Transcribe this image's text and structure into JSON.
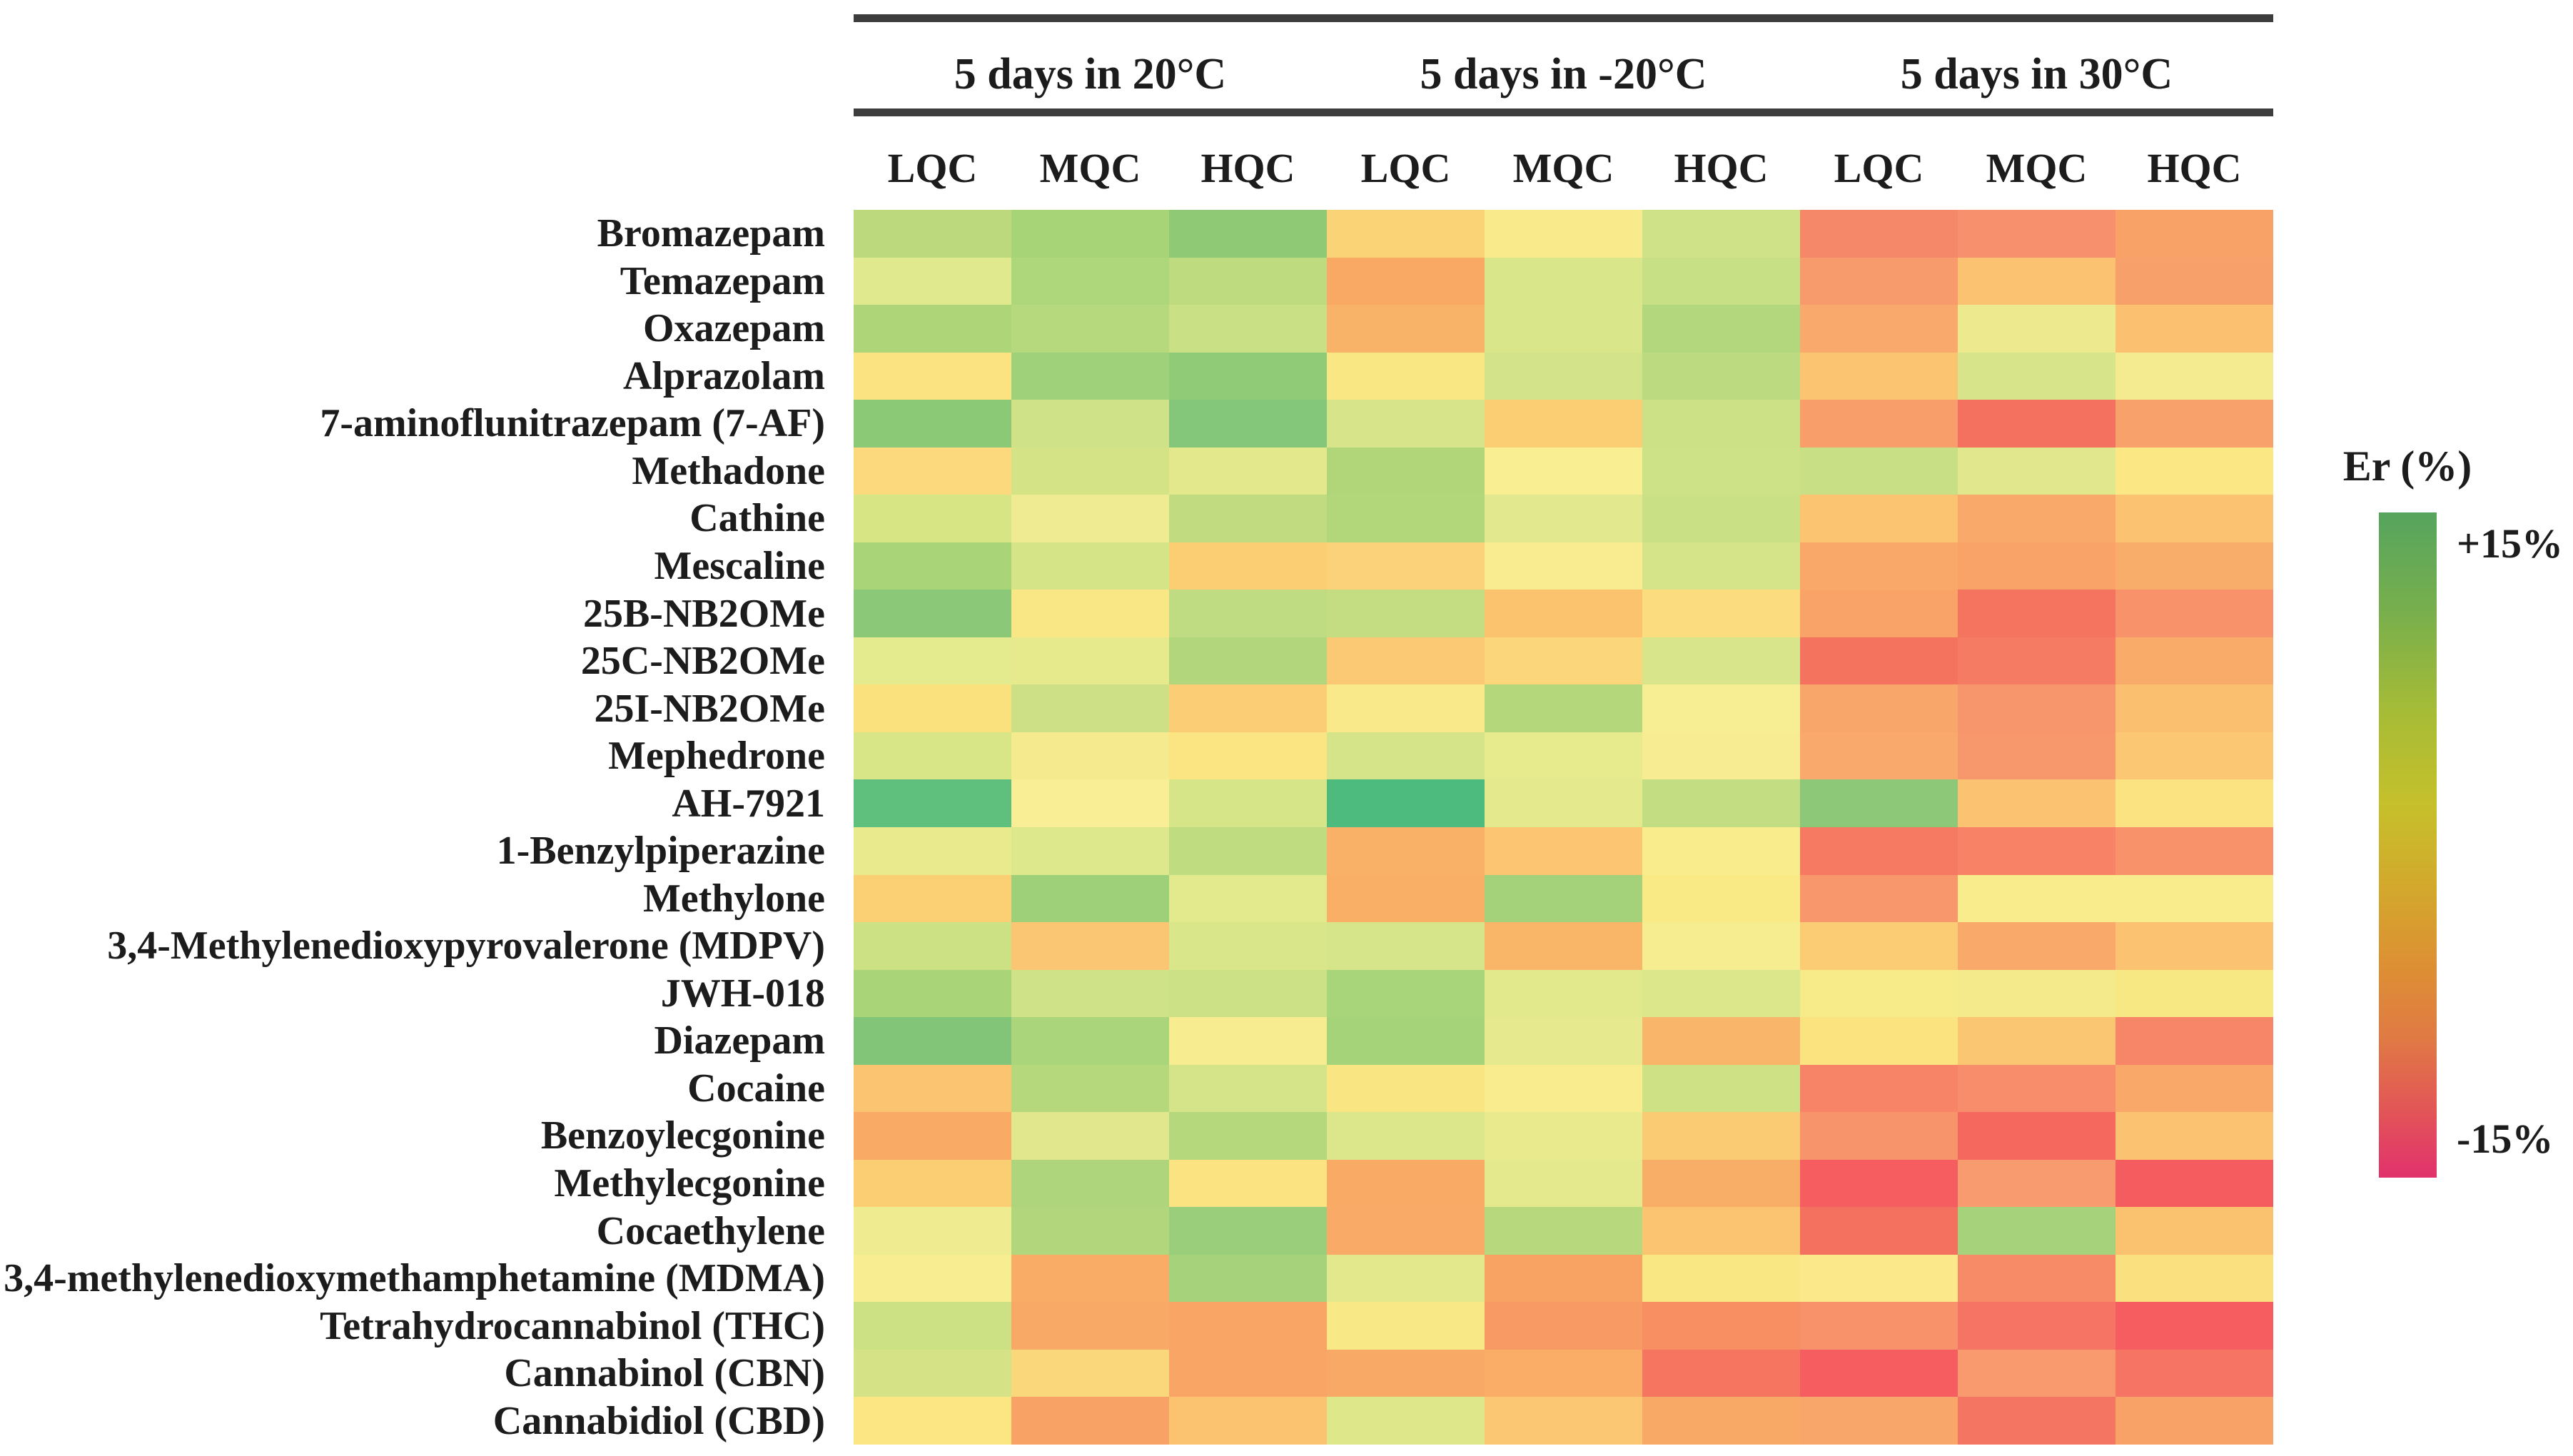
{
  "chart_data": {
    "type": "heatmap",
    "title": "",
    "col_groups": [
      "5 days in 20°C",
      "5 days in -20°C",
      "5 days in 30°C"
    ],
    "col_levels": [
      "LQC",
      "MQC",
      "HQC"
    ],
    "rows": [
      "Bromazepam",
      "Temazepam",
      "Oxazepam",
      "Alprazolam",
      "7-aminoflunitrazepam (7-AF)",
      "Methadone",
      "Cathine",
      "Mescaline",
      "25B-NB2OMe",
      "25C-NB2OMe",
      "25I-NB2OMe",
      "Mephedrone",
      "AH-7921",
      "1-Benzylpiperazine",
      "Methylone",
      "3,4-Methylenedioxypyrovalerone (MDPV)",
      "JWH-018",
      "Diazepam",
      "Cocaine",
      "Benzoylecgonine",
      "Methylecgonine",
      "Cocaethylene",
      "3,4-methylenedioxymethamphetamine (MDMA)",
      "Tetrahydrocannabinol (THC)",
      "Cannabinol (CBN)",
      "Cannabidiol (CBD)"
    ],
    "values_est_er_pct": [
      [
        5,
        7,
        8.5,
        -3.5,
        -0.5,
        3.5,
        -11,
        -10,
        -7.5
      ],
      [
        1.5,
        6.5,
        5,
        -7.5,
        3,
        4.5,
        -8.5,
        -5,
        -7.5
      ],
      [
        6.5,
        6,
        4.5,
        -6.5,
        3,
        6,
        -7,
        1,
        -5
      ],
      [
        -1.5,
        7.5,
        8.5,
        -1,
        3.5,
        5.5,
        -5,
        3,
        0
      ],
      [
        9,
        3.5,
        10,
        3,
        -4,
        3.5,
        -8,
        -12,
        -7.5
      ],
      [
        -3,
        3.5,
        1.5,
        6.5,
        0,
        3.5,
        4.5,
        2,
        -1
      ],
      [
        3,
        0.5,
        5,
        6.5,
        2,
        4.5,
        -5,
        -7,
        -5
      ],
      [
        7,
        3.5,
        -4,
        -3.5,
        0,
        3,
        -7,
        -7.5,
        -6.5
      ],
      [
        9,
        -0.5,
        5,
        4.5,
        -5,
        -2.5,
        -7.5,
        -11.5,
        -9.5
      ],
      [
        1.5,
        1.5,
        6,
        -4.5,
        -3,
        3,
        -11.5,
        -11,
        -6.5
      ],
      [
        -2,
        4,
        -4,
        -0.5,
        6,
        0,
        -7,
        -9,
        -5
      ],
      [
        3,
        0,
        -1.5,
        3,
        1.5,
        0,
        -7,
        -8.5,
        -4.5
      ],
      [
        12,
        0,
        3,
        13,
        1.5,
        5,
        9,
        -5,
        -1.5
      ],
      [
        1,
        2.5,
        5,
        -6.5,
        -4.5,
        0,
        -11,
        -10.5,
        -9.5
      ],
      [
        -3.5,
        7.5,
        1.5,
        -6.5,
        7,
        -0.5,
        -9,
        0,
        0
      ],
      [
        4,
        -4.5,
        3,
        3,
        -6,
        0,
        -4,
        -7,
        -5
      ],
      [
        7,
        3.5,
        3.5,
        7,
        2,
        2.5,
        -0.5,
        0,
        -1
      ],
      [
        10,
        6.5,
        0,
        7,
        1.5,
        -6,
        -2,
        -4.5,
        -10
      ],
      [
        -5,
        6,
        3,
        -1,
        0,
        4,
        -10.5,
        -9.5,
        -7
      ],
      [
        -7,
        2,
        6,
        2.5,
        1,
        -4,
        -9,
        -12,
        -5
      ],
      [
        -4,
        6.5,
        -1.5,
        -7,
        1.5,
        -6.5,
        -12.5,
        -8.5,
        -12.5
      ],
      [
        0.5,
        6,
        7.5,
        -7,
        6,
        -5,
        -11.5,
        7,
        -5
      ],
      [
        0,
        -7,
        7,
        2,
        -7.5,
        -1,
        -0.5,
        -9.5,
        -2.5
      ],
      [
        4,
        -7,
        -7.5,
        -1,
        -8.5,
        -10,
        -9.5,
        -11.5,
        -12.5
      ],
      [
        3.5,
        -3,
        -7.5,
        -7,
        -6.5,
        -11.5,
        -12.5,
        -8.5,
        -11
      ],
      [
        -1,
        -7.5,
        -5,
        2.5,
        -4.5,
        -7,
        -7,
        -11,
        -7.5
      ]
    ],
    "cell_colors": [
      [
        "#bcda7d",
        "#a8d478",
        "#90c976",
        "#fbd377",
        "#f9ea8c",
        "#cfe287",
        "#f58868",
        "#f7906c",
        "#f8a268"
      ],
      [
        "#e0e98d",
        "#aed67a",
        "#bedb80",
        "#f9a963",
        "#d9e68a",
        "#c7df85",
        "#f79b6d",
        "#fbc272",
        "#f8a069"
      ],
      [
        "#aed577",
        "#b7d97d",
        "#c9e084",
        "#f9b369",
        "#d9e68a",
        "#b2d77c",
        "#f9a96c",
        "#ece98f",
        "#fbc170"
      ],
      [
        "#fbe381",
        "#9ed17a",
        "#90cb78",
        "#f9e784",
        "#d2e389",
        "#bcda7f",
        "#fbc471",
        "#d7e48a",
        "#f4eb90"
      ],
      [
        "#8cc977",
        "#cfe287",
        "#84c67a",
        "#d8e489",
        "#fbce74",
        "#cce186",
        "#f89e6a",
        "#f4705f",
        "#f8a16b"
      ],
      [
        "#fcd97c",
        "#d4e386",
        "#e3e88d",
        "#b1d67a",
        "#f9ee92",
        "#cde187",
        "#c8df85",
        "#e0e78c",
        "#fbe885"
      ],
      [
        "#d7e584",
        "#eeeb93",
        "#c0db80",
        "#b2d77b",
        "#e2e88d",
        "#c9e085",
        "#fbc470",
        "#f9a96a",
        "#fbc371"
      ],
      [
        "#a9d478",
        "#d5e486",
        "#fbce74",
        "#fbd17a",
        "#f9ec90",
        "#d6e489",
        "#f9a86a",
        "#f9a368",
        "#f9ad6b"
      ],
      [
        "#8bc877",
        "#f9e786",
        "#c0dc82",
        "#c4dd83",
        "#fbc36e",
        "#fbdc7e",
        "#f9a369",
        "#f4745f",
        "#f7926b"
      ],
      [
        "#e4ea8e",
        "#e7e98d",
        "#b2d67c",
        "#fbc873",
        "#fbd67a",
        "#d8e58a",
        "#f4735f",
        "#f57b63",
        "#f9ab6a"
      ],
      [
        "#fbe07e",
        "#cde085",
        "#fbce76",
        "#f9e98a",
        "#b4d77c",
        "#f7ed92",
        "#f9a66a",
        "#f7966c",
        "#fbc06f"
      ],
      [
        "#d8e688",
        "#f5ea8d",
        "#fbe583",
        "#d5e488",
        "#e8ea8e",
        "#f7ec91",
        "#f9a96b",
        "#f7986c",
        "#fbc773"
      ],
      [
        "#5fc07e",
        "#f9ee96",
        "#d6e588",
        "#4dbb7d",
        "#e5e98d",
        "#c3dd82",
        "#8cc877",
        "#fbc271",
        "#fbe382"
      ],
      [
        "#e9ea8e",
        "#dde78b",
        "#c0dc81",
        "#f9b167",
        "#fbc571",
        "#f9ec8c",
        "#f57a61",
        "#f78266",
        "#f8926b"
      ],
      [
        "#fbd075",
        "#9ed07a",
        "#e3e98d",
        "#f9b066",
        "#a3d27a",
        "#f9ea86",
        "#f8966c",
        "#f9ec8c",
        "#f9ec8c"
      ],
      [
        "#cce084",
        "#fbc673",
        "#d9e68a",
        "#d7e58a",
        "#f9b668",
        "#f6ec90",
        "#fbcc73",
        "#f9a96a",
        "#fbc271"
      ],
      [
        "#a9d478",
        "#cfe287",
        "#cce186",
        "#a8d47a",
        "#e2e88c",
        "#dce78b",
        "#f6ea89",
        "#f4ea8b",
        "#f8e884"
      ],
      [
        "#82c578",
        "#abd57b",
        "#f7ec90",
        "#a5d379",
        "#e6e98d",
        "#f9b569",
        "#fbe47f",
        "#fbc671",
        "#f78668"
      ],
      [
        "#fbc470",
        "#b5d87c",
        "#d5e488",
        "#f9e683",
        "#f9ec8e",
        "#cfe185",
        "#f78467",
        "#f78d6a",
        "#f9a86a"
      ],
      [
        "#f9ab66",
        "#e0e78c",
        "#b5d87d",
        "#dce78b",
        "#e9ea8e",
        "#fbcb74",
        "#f8946c",
        "#f4685e",
        "#fbc371"
      ],
      [
        "#fbce73",
        "#aed57c",
        "#fbe382",
        "#f9ab66",
        "#e5e98d",
        "#f9ae68",
        "#f55d60",
        "#f89b6e",
        "#f55c60"
      ],
      [
        "#eeeb90",
        "#b2d67b",
        "#9bce7a",
        "#f9aa66",
        "#b7d87d",
        "#fbc470",
        "#f4705f",
        "#a5d27b",
        "#fac16f"
      ],
      [
        "#f9ed92",
        "#f9ac66",
        "#a5d27b",
        "#e3e88c",
        "#f8a264",
        "#f9e784",
        "#fbe88a",
        "#f78b68",
        "#fbe07f"
      ],
      [
        "#cce084",
        "#f9a966",
        "#f9a566",
        "#f9e886",
        "#f79a64",
        "#f78f62",
        "#f8926b",
        "#f57463",
        "#f55d60"
      ],
      [
        "#d5e386",
        "#fbd77b",
        "#f9a566",
        "#f9a966",
        "#f9ad67",
        "#f57560",
        "#f55d60",
        "#f89a6d",
        "#f57463"
      ],
      [
        "#fbe683",
        "#f8a365",
        "#fbc36f",
        "#dfe78b",
        "#fbc773",
        "#f9a966",
        "#f9a66b",
        "#f57563",
        "#f9a267"
      ]
    ],
    "colorbar": {
      "title": "Er (%)",
      "max_label": "+15%",
      "min_label": "-15%",
      "range": [
        -15,
        15
      ],
      "gradient": [
        {
          "pos": 0,
          "color": "#55a45e"
        },
        {
          "pos": 16,
          "color": "#7bb04b"
        },
        {
          "pos": 30,
          "color": "#a6bc36"
        },
        {
          "pos": 44,
          "color": "#c6c02b"
        },
        {
          "pos": 56,
          "color": "#d2a92c"
        },
        {
          "pos": 68,
          "color": "#dd9033"
        },
        {
          "pos": 79,
          "color": "#e07a44"
        },
        {
          "pos": 90,
          "color": "#e25557"
        },
        {
          "pos": 100,
          "color": "#e1316d"
        }
      ]
    },
    "layout": {
      "legend_position": "right",
      "grid": false,
      "n_rows": 26,
      "n_cols": 9
    }
  }
}
